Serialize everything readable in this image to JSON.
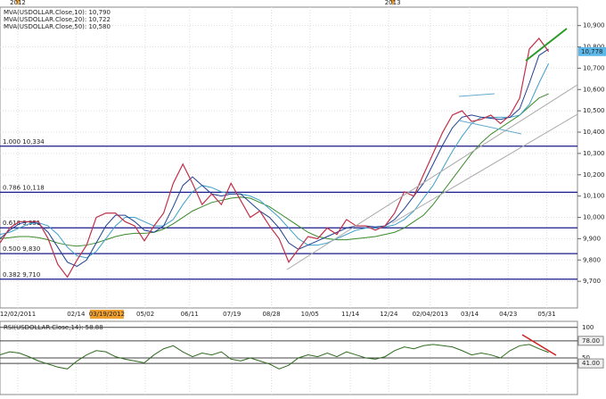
{
  "chart_data": {
    "type": "line",
    "x": [
      0,
      1,
      2,
      3,
      4,
      5,
      6,
      7,
      8,
      9,
      10,
      11,
      12,
      13,
      14,
      15,
      16,
      17,
      18,
      19,
      20,
      21,
      22,
      23,
      24,
      25,
      26,
      27,
      28,
      29,
      30,
      31,
      32,
      33,
      34,
      35,
      36,
      37,
      38,
      39,
      40,
      41,
      42,
      43,
      44,
      45,
      46,
      47,
      48,
      49,
      50,
      51,
      52,
      53,
      54,
      55,
      56,
      57
    ],
    "xlim": [
      0,
      60
    ],
    "xticks": [
      {
        "value": 1.85,
        "label": "12/02/2011"
      },
      {
        "value": 7.9,
        "label": "02/14"
      },
      {
        "value": 11.1,
        "label": "03/19/2012"
      },
      {
        "value": 15.1,
        "label": "05/02"
      },
      {
        "value": 19.7,
        "label": "06/11"
      },
      {
        "value": 24.1,
        "label": "07/19"
      },
      {
        "value": 28.2,
        "label": "08/28"
      },
      {
        "value": 32.2,
        "label": "10/05"
      },
      {
        "value": 36.4,
        "label": "11/14"
      },
      {
        "value": 40.4,
        "label": "12/24"
      },
      {
        "value": 44.7,
        "label": "02/04/2013"
      },
      {
        "value": 48.8,
        "label": "03/14"
      },
      {
        "value": 52.8,
        "label": "04/23"
      },
      {
        "value": 56.8,
        "label": "05/31"
      }
    ],
    "highlight_xtick": 2,
    "year_markers": [
      {
        "value": 1.85,
        "label": "2012"
      },
      {
        "value": 40.8,
        "label": "2013"
      }
    ],
    "ylim": [
      9575,
      11020
    ],
    "yticks": [
      {
        "value": 9700,
        "label": "9,700"
      },
      {
        "value": 9800,
        "label": "9,800"
      },
      {
        "value": 9900,
        "label": "9,900"
      },
      {
        "value": 10000,
        "label": "10,000"
      },
      {
        "value": 10100,
        "label": "10,100"
      },
      {
        "value": 10200,
        "label": "10,200"
      },
      {
        "value": 10300,
        "label": "10,300"
      },
      {
        "value": 10400,
        "label": "10,400"
      },
      {
        "value": 10500,
        "label": "10,500"
      },
      {
        "value": 10600,
        "label": "10,600"
      },
      {
        "value": 10700,
        "label": "10,700"
      },
      {
        "value": 10800,
        "label": "10,800"
      },
      {
        "value": 10900,
        "label": "10,900"
      }
    ],
    "grid": true,
    "series": [
      {
        "name": "USDOLLAR",
        "color": "#c0304a",
        "values": [
          9880,
          9950,
          9980,
          9980,
          9980,
          9900,
          9780,
          9720,
          9800,
          9870,
          10000,
          10020,
          10020,
          9980,
          9960,
          9890,
          9960,
          10020,
          10160,
          10250,
          10160,
          10060,
          10110,
          10060,
          10160,
          10080,
          10000,
          10030,
          9960,
          9900,
          9790,
          9850,
          9910,
          9900,
          9950,
          9920,
          9990,
          9960,
          9960,
          9940,
          9960,
          10020,
          10120,
          10100,
          10200,
          10300,
          10400,
          10480,
          10500,
          10450,
          10460,
          10480,
          10440,
          10480,
          10560,
          10790,
          10840,
          10778
        ]
      },
      {
        "name": "MVA(USDOLLAR.Close,10): 10,790",
        "color": "#1f3f8f",
        "values": [
          9900,
          9940,
          9970,
          9980,
          9970,
          9930,
          9860,
          9790,
          9770,
          9800,
          9880,
          9960,
          10010,
          10010,
          9980,
          9940,
          9930,
          9960,
          10050,
          10150,
          10190,
          10150,
          10110,
          10100,
          10110,
          10110,
          10070,
          10030,
          10000,
          9950,
          9880,
          9850,
          9870,
          9890,
          9910,
          9930,
          9950,
          9960,
          9960,
          9955,
          9960,
          9990,
          10040,
          10100,
          10160,
          10250,
          10340,
          10420,
          10470,
          10480,
          10470,
          10465,
          10460,
          10470,
          10510,
          10630,
          10760,
          10790
        ]
      },
      {
        "name": "MVA(USDOLLAR.Close,20): 10,722",
        "color": "#3f9fc8",
        "values": [
          9920,
          9930,
          9950,
          9970,
          9975,
          9960,
          9920,
          9860,
          9820,
          9810,
          9840,
          9900,
          9960,
          10000,
          10000,
          9980,
          9960,
          9960,
          9990,
          10060,
          10120,
          10150,
          10140,
          10120,
          10110,
          10110,
          10100,
          10080,
          10040,
          10000,
          9950,
          9900,
          9870,
          9870,
          9880,
          9900,
          9920,
          9940,
          9950,
          9950,
          9955,
          9965,
          9990,
          10030,
          10090,
          10150,
          10230,
          10310,
          10380,
          10440,
          10470,
          10470,
          10470,
          10470,
          10480,
          10530,
          10630,
          10722
        ]
      },
      {
        "name": "MVA(USDOLLAR.Close,50): 10,580",
        "color": "#3a8a2a",
        "values": [
          9900,
          9905,
          9910,
          9910,
          9905,
          9895,
          9880,
          9870,
          9865,
          9870,
          9880,
          9895,
          9910,
          9920,
          9925,
          9925,
          9930,
          9945,
          9970,
          10000,
          10030,
          10050,
          10070,
          10080,
          10090,
          10095,
          10090,
          10070,
          10050,
          10020,
          9990,
          9960,
          9930,
          9910,
          9900,
          9895,
          9895,
          9900,
          9905,
          9910,
          9920,
          9930,
          9950,
          9980,
          10010,
          10060,
          10120,
          10180,
          10240,
          10300,
          10350,
          10390,
          10420,
          10450,
          10480,
          10520,
          10560,
          10580
        ]
      }
    ],
    "levels": [
      {
        "value": 10334,
        "label": "1.000 10,334"
      },
      {
        "value": 10118,
        "label": "0.786 10,118"
      },
      {
        "value": 9951,
        "label": "0.618 9,951"
      },
      {
        "value": 9830,
        "label": "0.500 9,830"
      },
      {
        "value": 9710,
        "label": "0.382 9,710"
      }
    ],
    "last_label": {
      "value": 10778,
      "label": "10,778"
    },
    "rsi": {
      "name": "RSI(USDOLLAR.Close,14): 58.88",
      "color": "#2f6a1f",
      "values": [
        55,
        60,
        58,
        52,
        45,
        40,
        35,
        32,
        45,
        55,
        62,
        60,
        52,
        48,
        45,
        42,
        55,
        65,
        70,
        60,
        52,
        58,
        55,
        60,
        48,
        45,
        50,
        45,
        40,
        32,
        38,
        50,
        55,
        52,
        58,
        52,
        60,
        55,
        50,
        48,
        52,
        62,
        68,
        65,
        70,
        72,
        70,
        68,
        62,
        55,
        58,
        55,
        50,
        62,
        70,
        72,
        65,
        58.88
      ],
      "ylim": [
        -10,
        107
      ],
      "yticks": [
        100,
        {
          "value": 78,
          "label": "78.00"
        },
        50,
        {
          "value": 41,
          "label": "41.00"
        }
      ]
    }
  }
}
